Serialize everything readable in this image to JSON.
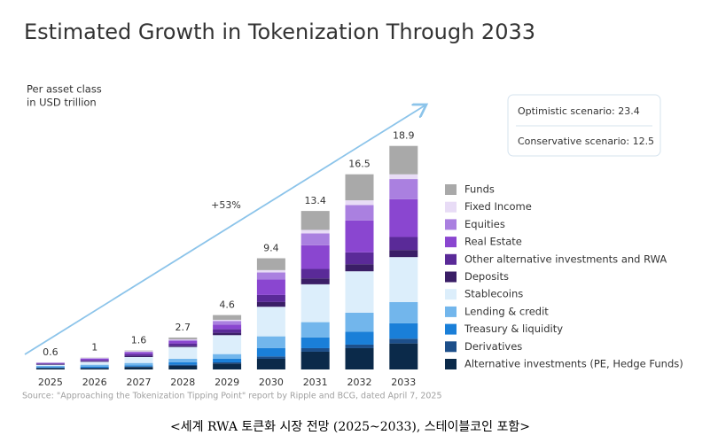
{
  "chart_data": {
    "type": "stacked_bar",
    "title": "Estimated Growth in Tokenization Through 2033",
    "subtitle": [
      "Per asset class",
      "in USD trillion"
    ],
    "growth_label": "+53%",
    "scenarios": [
      "Optimistic scenario: 23.4",
      "Conservative scenario: 12.5"
    ],
    "source": "Source: \"Approaching the Tokenization Tipping Point\" report by Ripple and BCG, dated April 7, 2025",
    "caption": "<세계 RWA 토큰화 시장 전망 (2025~2033), 스테이블코인 포함>",
    "categories": [
      "2025",
      "2026",
      "2027",
      "2028",
      "2029",
      "2030",
      "2031",
      "2032",
      "2033"
    ],
    "totals": [
      0.6,
      1.0,
      1.6,
      2.7,
      4.6,
      9.4,
      13.4,
      16.5,
      18.9
    ],
    "ylim": [
      0,
      20
    ],
    "series": [
      {
        "name": "Alternative investments (PE, Hedge Funds)",
        "color": "#0b2a4a",
        "values": [
          0.1,
          0.1,
          0.2,
          0.3,
          0.5,
          0.9,
          1.5,
          1.8,
          2.2
        ]
      },
      {
        "name": "Derivatives",
        "color": "#1d4f8a",
        "values": [
          0.05,
          0.05,
          0.05,
          0.1,
          0.1,
          0.2,
          0.3,
          0.3,
          0.4
        ]
      },
      {
        "name": "Treasury & liquidity",
        "color": "#1a7fd8",
        "values": [
          0.05,
          0.1,
          0.1,
          0.2,
          0.3,
          0.7,
          0.9,
          1.1,
          1.3
        ]
      },
      {
        "name": "Lending & credit",
        "color": "#72b6ec",
        "values": [
          0.1,
          0.15,
          0.2,
          0.3,
          0.4,
          1.0,
          1.3,
          1.6,
          1.8
        ]
      },
      {
        "name": "Stablecoins",
        "color": "#dceefb",
        "values": [
          0.1,
          0.25,
          0.5,
          1.0,
          1.6,
          2.5,
          3.2,
          3.5,
          3.8
        ]
      },
      {
        "name": "Deposits",
        "color": "#3a1e66",
        "values": [
          0.05,
          0.05,
          0.1,
          0.1,
          0.2,
          0.4,
          0.5,
          0.6,
          0.6
        ]
      },
      {
        "name": "Other alternative investments and RWA",
        "color": "#5a2a98",
        "values": [
          0.05,
          0.1,
          0.15,
          0.2,
          0.3,
          0.6,
          0.8,
          1.0,
          1.1
        ]
      },
      {
        "name": "Real Estate",
        "color": "#8a46d0",
        "values": [
          0.05,
          0.1,
          0.15,
          0.2,
          0.4,
          1.3,
          2.0,
          2.7,
          3.2
        ]
      },
      {
        "name": "Equities",
        "color": "#aa80e0",
        "values": [
          0.03,
          0.05,
          0.05,
          0.1,
          0.3,
          0.6,
          1.0,
          1.3,
          1.7
        ]
      },
      {
        "name": "Fixed Income",
        "color": "#e8dcf6",
        "values": [
          0.01,
          0.03,
          0.05,
          0.05,
          0.1,
          0.2,
          0.3,
          0.4,
          0.4
        ]
      },
      {
        "name": "Funds",
        "color": "#a9a9a9",
        "values": [
          0.01,
          0.02,
          0.05,
          0.15,
          0.4,
          1.0,
          1.6,
          2.2,
          2.4
        ]
      }
    ]
  }
}
